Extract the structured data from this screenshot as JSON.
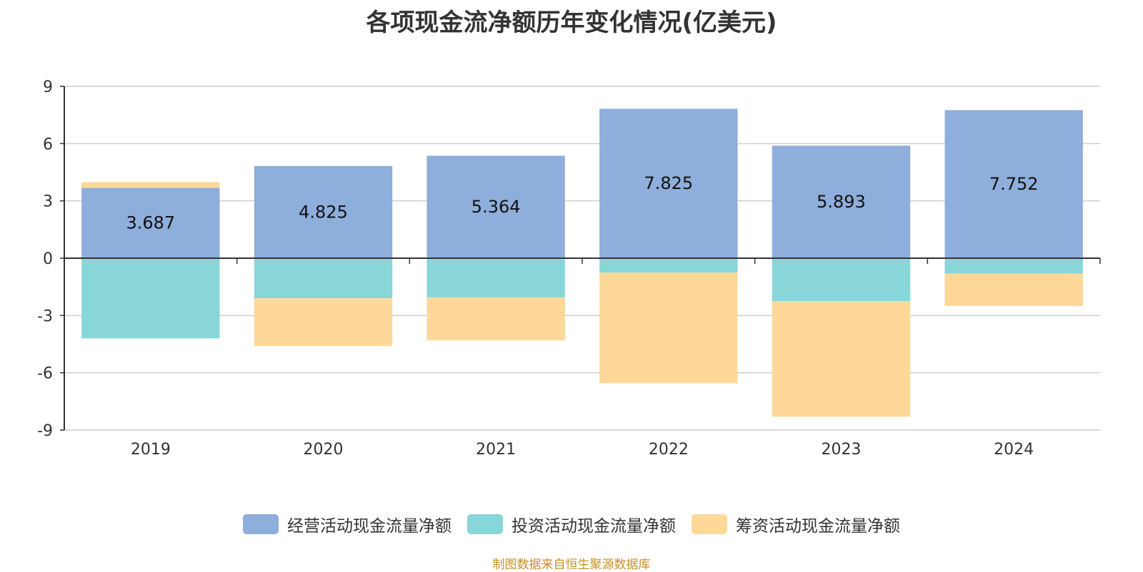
{
  "title": "各项现金流净额历年变化情况(亿美元)",
  "source_note": "制图数据来自恒生聚源数据库",
  "chart_data": {
    "type": "bar",
    "stacked": true,
    "categories": [
      "2019",
      "2020",
      "2021",
      "2022",
      "2023",
      "2024"
    ],
    "ylim": [
      -9,
      9
    ],
    "yticks": [
      9,
      6,
      3,
      0,
      -3,
      -6,
      -9
    ],
    "ytick_labels": [
      "9",
      "6",
      "3",
      "0",
      "-3",
      "-6",
      "-9"
    ],
    "grid": true,
    "legend_position": "bottom",
    "series": [
      {
        "name": "经营活动现金流量净额",
        "color": "#8eaedb",
        "values": [
          3.687,
          4.825,
          5.364,
          7.825,
          5.893,
          7.752
        ],
        "labels": [
          "3.687",
          "4.825",
          "5.364",
          "7.825",
          "5.893",
          "7.752"
        ]
      },
      {
        "name": "投资活动现金流量净额",
        "color": "#88d6d8",
        "values": [
          -4.2,
          -2.1,
          -2.05,
          -0.75,
          -2.25,
          -0.8
        ]
      },
      {
        "name": "筹资活动现金流量净额",
        "color": "#fdd899",
        "values": [
          0.3,
          -2.5,
          -2.25,
          -5.8,
          -6.05,
          -1.7
        ]
      }
    ]
  }
}
